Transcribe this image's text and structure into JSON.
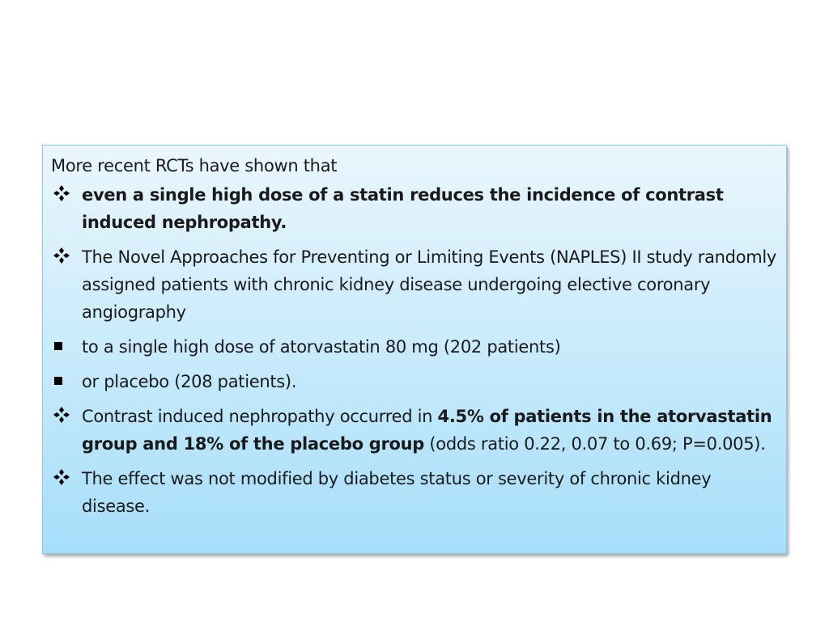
{
  "intro": "More recent RCTs have shown that",
  "items": [
    {
      "marker": "diamond-bullet-icon",
      "segments": [
        {
          "text": " even a single high dose of a statin reduces the incidence of contrast induced nephropathy.",
          "bold": true
        }
      ]
    },
    {
      "marker": "diamond-bullet-icon",
      "segments": [
        {
          "text": " The Novel Approaches for Preventing or Limiting Events (NAPLES) II study randomly assigned patients with chronic kidney disease undergoing elective coronary angiography",
          "bold": false
        }
      ]
    },
    {
      "marker": "square-bullet-icon",
      "segments": [
        {
          "text": "to a single high dose of atorvastatin 80 mg (202 patients)",
          "bold": false
        }
      ]
    },
    {
      "marker": "square-bullet-icon",
      "segments": [
        {
          "text": "or placebo (208 patients).",
          "bold": false
        }
      ]
    },
    {
      "marker": "diamond-bullet-icon",
      "segments": [
        {
          "text": " Contrast induced nephropathy occurred in ",
          "bold": false
        },
        {
          "text": "4.5% of patients in the atorvastatin  group and 18% of the placebo group",
          "bold": true
        },
        {
          "text": " (odds ratio 0.22, 0.07 to 0.69; P=0.005).",
          "bold": false
        }
      ]
    },
    {
      "marker": "diamond-bullet-icon",
      "segments": [
        {
          "text": " The effect was not modified by diabetes status or severity of chronic kidney disease.",
          "bold": false
        }
      ]
    }
  ],
  "colors": {
    "box_top": "#eaf6fd",
    "box_bottom": "#a6defa",
    "box_border": "#8fc8de",
    "text": "#1a1a1a"
  }
}
